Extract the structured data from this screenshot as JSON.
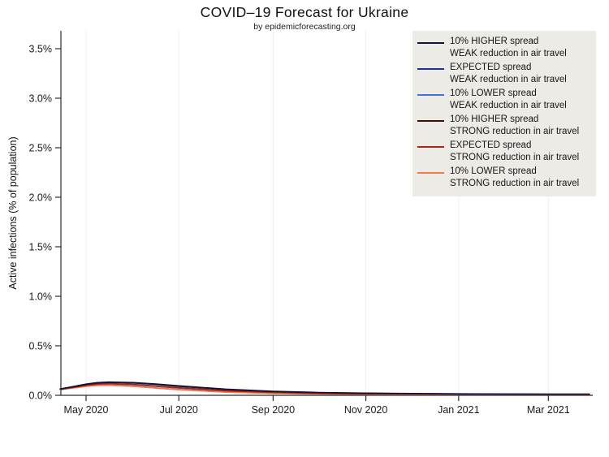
{
  "header": {
    "title": "COVID–19 Forecast for Ukraine",
    "subtitle": "by epidemicforecasting.org"
  },
  "y_axis": {
    "label": "Active infections (% of population)",
    "ticks": [
      0.0,
      0.5,
      1.0,
      1.5,
      2.0,
      2.5,
      3.0,
      3.5
    ],
    "tick_labels": [
      "0.0%",
      "0.5%",
      "1.0%",
      "1.5%",
      "2.0%",
      "2.5%",
      "3.0%",
      "3.5%"
    ]
  },
  "x_axis": {
    "tick_labels": [
      "May 2020",
      "Jul 2020",
      "Sep 2020",
      "Nov 2020",
      "Jan 2021",
      "Mar 2021"
    ],
    "tick_dates": [
      "2020-05-01",
      "2020-07-01",
      "2020-09-01",
      "2020-11-01",
      "2021-01-01",
      "2021-03-01"
    ]
  },
  "legend": {
    "items": [
      {
        "line1": "10% HIGHER spread",
        "line2": "WEAK reduction in air travel",
        "color": "#12123f"
      },
      {
        "line1": "EXPECTED spread",
        "line2": "WEAK reduction in air travel",
        "color": "#233292"
      },
      {
        "line1": "10% LOWER spread",
        "line2": "WEAK reduction in air travel",
        "color": "#4273d8"
      },
      {
        "line1": "10% HIGHER spread",
        "line2": "STRONG reduction in air travel",
        "color": "#3f1008"
      },
      {
        "line1": "EXPECTED spread",
        "line2": "STRONG reduction in air travel",
        "color": "#a32a13"
      },
      {
        "line1": "10% LOWER spread",
        "line2": "STRONG reduction in air travel",
        "color": "#f5794e"
      }
    ]
  },
  "chart_data": {
    "type": "line",
    "title": "COVID–19 Forecast for Ukraine",
    "subtitle": "by epidemicforecasting.org",
    "xlabel": "",
    "ylabel": "Active infections (% of population)",
    "ylim": [
      0,
      3.7
    ],
    "xlim": [
      "2020-04-14",
      "2021-03-31"
    ],
    "grid": "vertical-only",
    "legend_position": "top-right",
    "x_dates": [
      "2020-04-14",
      "2020-04-23",
      "2020-05-01",
      "2020-05-08",
      "2020-05-16",
      "2020-06-01",
      "2020-06-16",
      "2020-07-01",
      "2020-08-01",
      "2020-09-01",
      "2020-10-01",
      "2020-11-01",
      "2020-12-01",
      "2021-01-01",
      "2021-02-01",
      "2021-03-01",
      "2021-03-28"
    ],
    "series": [
      {
        "name": "10% HIGHER spread, WEAK reduction in air travel",
        "color": "#12123f",
        "values": [
          0.065,
          0.09,
          0.113,
          0.128,
          0.134,
          0.129,
          0.115,
          0.096,
          0.062,
          0.041,
          0.029,
          0.022,
          0.018,
          0.015,
          0.013,
          0.012,
          0.012
        ]
      },
      {
        "name": "EXPECTED spread, WEAK reduction in air travel",
        "color": "#233292",
        "values": [
          0.061,
          0.083,
          0.103,
          0.115,
          0.119,
          0.11,
          0.094,
          0.076,
          0.046,
          0.029,
          0.021,
          0.016,
          0.013,
          0.011,
          0.01,
          0.009,
          0.009
        ]
      },
      {
        "name": "10% LOWER spread, WEAK reduction in air travel",
        "color": "#4273d8",
        "values": [
          0.058,
          0.077,
          0.093,
          0.101,
          0.103,
          0.092,
          0.075,
          0.058,
          0.033,
          0.021,
          0.015,
          0.011,
          0.009,
          0.008,
          0.008,
          0.007,
          0.007
        ]
      },
      {
        "name": "10% HIGHER spread, STRONG reduction in air travel",
        "color": "#3f1008",
        "values": [
          0.063,
          0.087,
          0.109,
          0.124,
          0.13,
          0.125,
          0.11,
          0.091,
          0.058,
          0.038,
          0.026,
          0.02,
          0.016,
          0.014,
          0.012,
          0.011,
          0.011
        ]
      },
      {
        "name": "EXPECTED spread, STRONG reduction in air travel",
        "color": "#a32a13",
        "values": [
          0.06,
          0.081,
          0.1,
          0.112,
          0.116,
          0.107,
          0.091,
          0.073,
          0.044,
          0.028,
          0.02,
          0.015,
          0.012,
          0.011,
          0.01,
          0.009,
          0.009
        ]
      },
      {
        "name": "10% LOWER spread, STRONG reduction in air travel",
        "color": "#f5794e",
        "values": [
          0.057,
          0.075,
          0.091,
          0.099,
          0.101,
          0.09,
          0.073,
          0.056,
          0.031,
          0.02,
          0.014,
          0.01,
          0.009,
          0.008,
          0.007,
          0.007,
          0.007
        ]
      }
    ]
  }
}
